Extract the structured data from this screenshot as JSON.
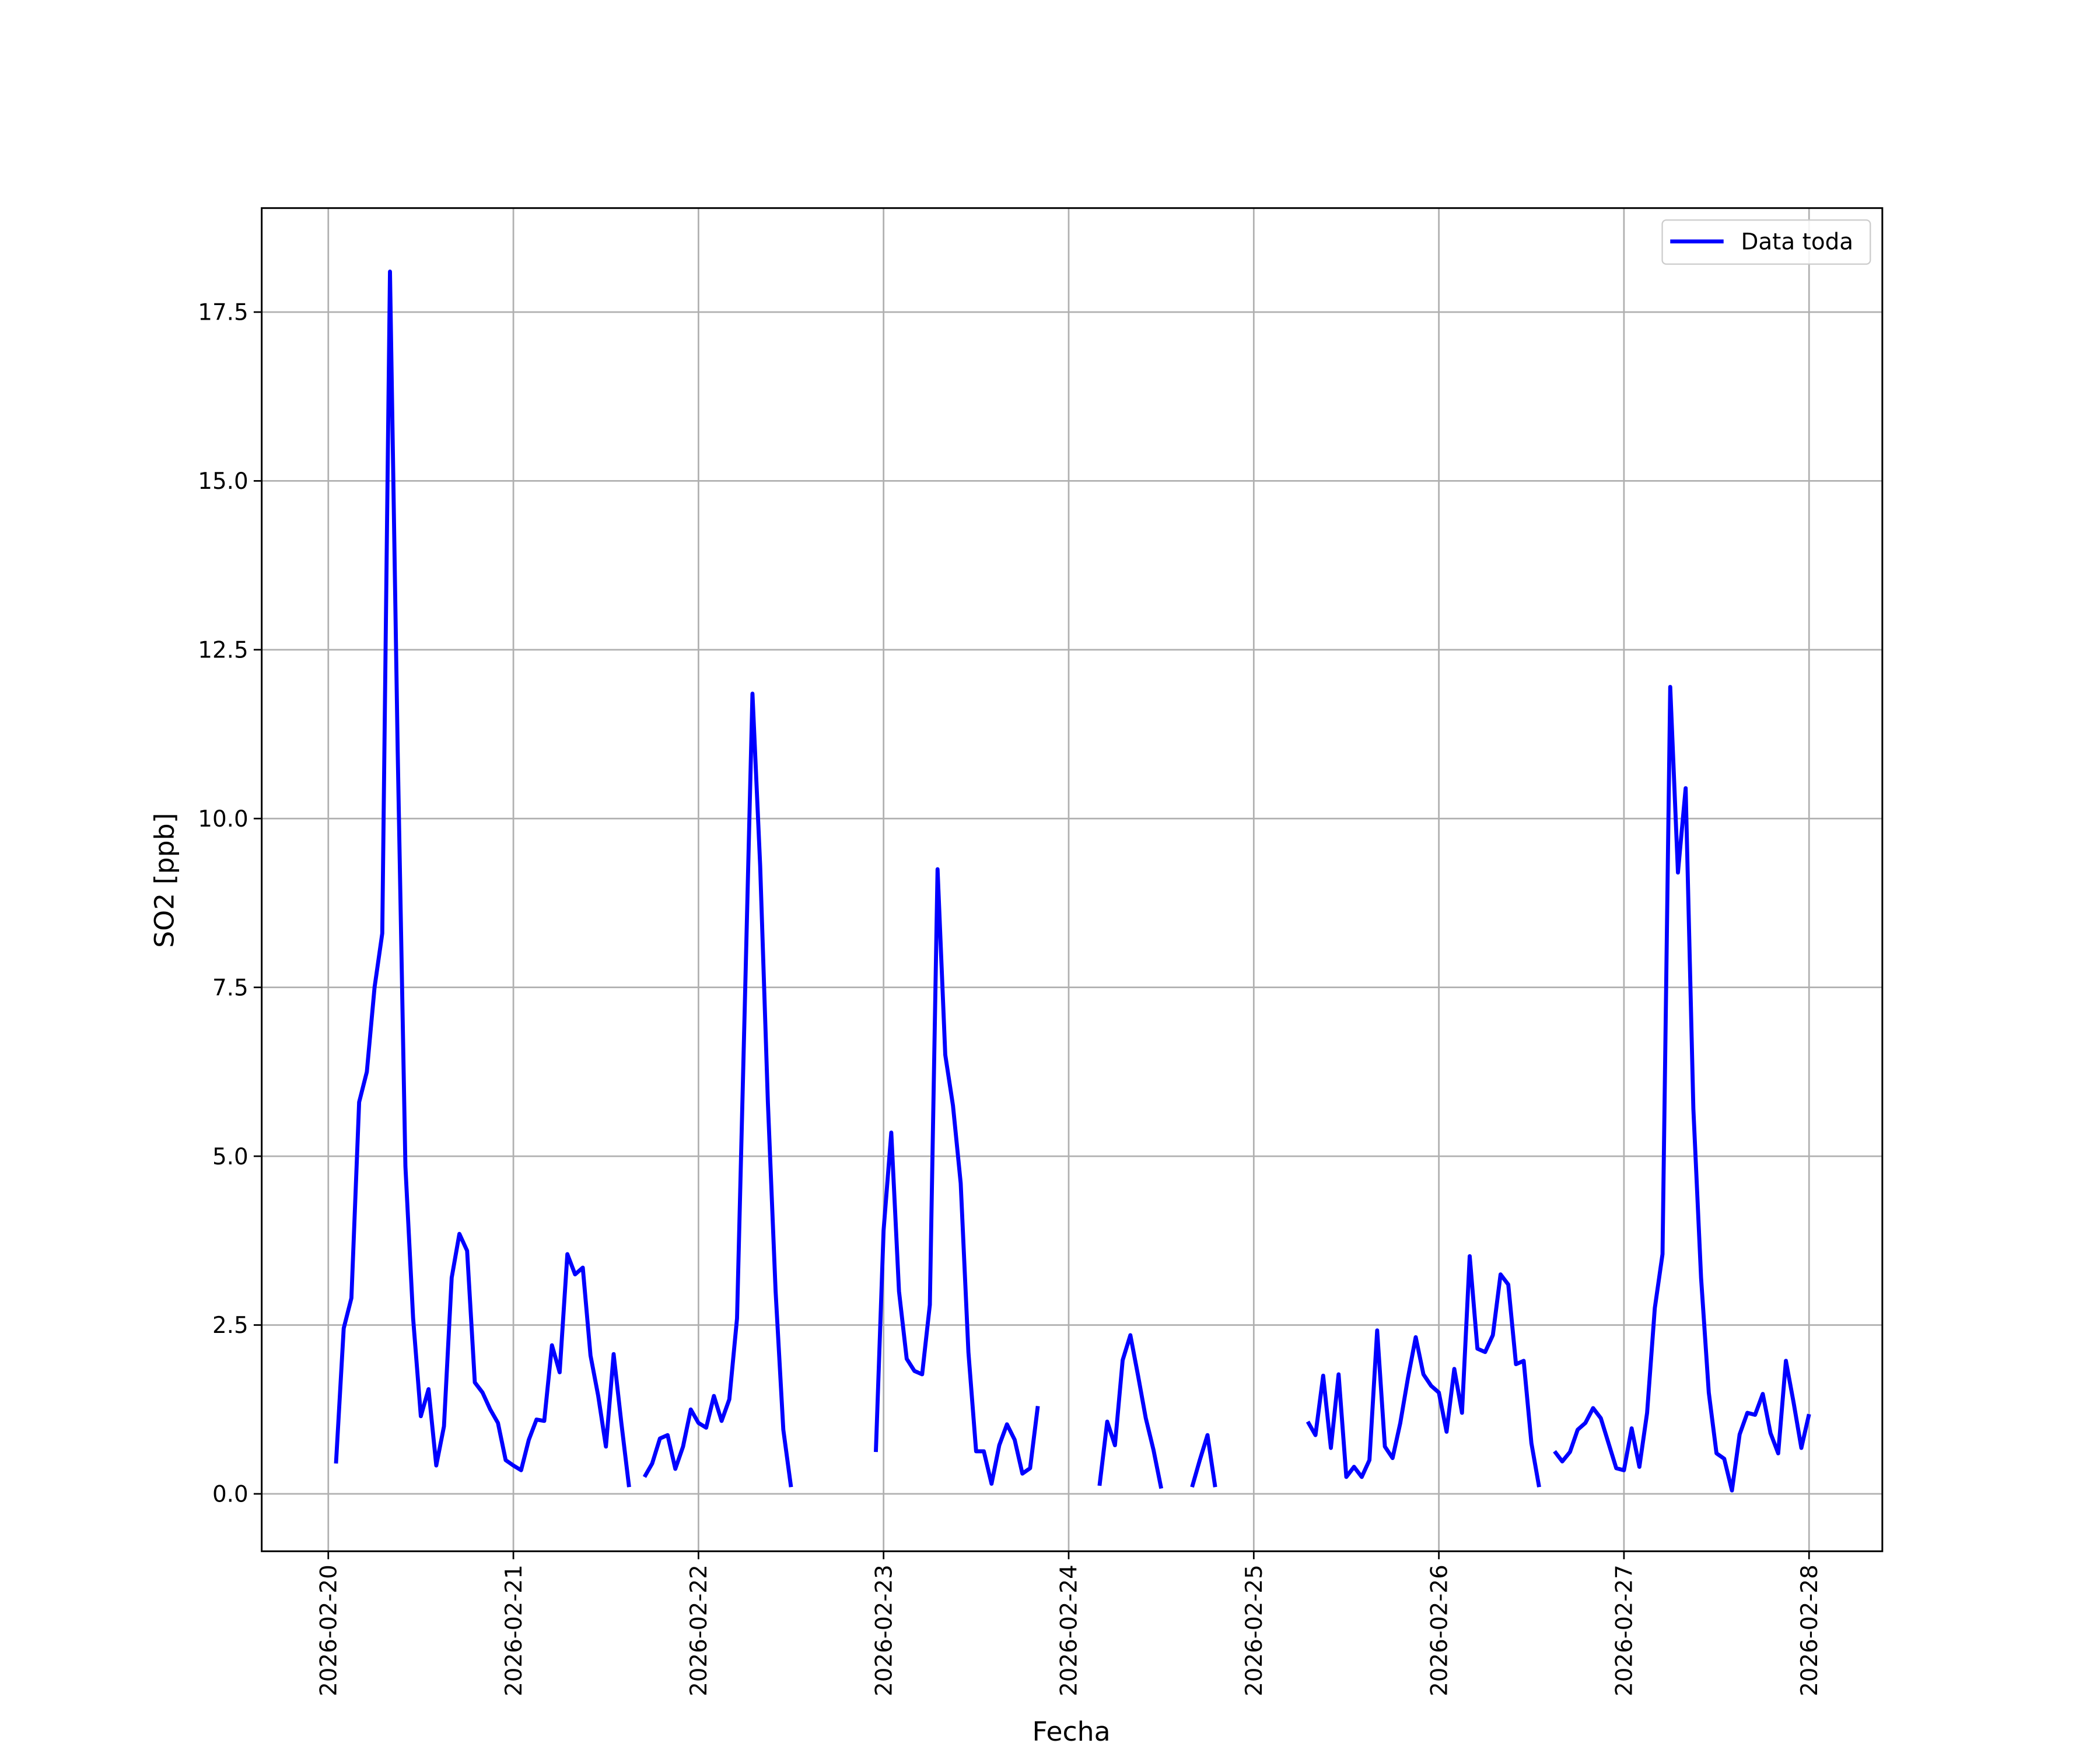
{
  "chart_data": {
    "type": "line",
    "xlabel": "Fecha",
    "ylabel": "SO2 [ppb]",
    "x": [
      "2026-02-20 01:00",
      "2026-02-20 02:00",
      "2026-02-20 03:00",
      "2026-02-20 04:00",
      "2026-02-20 05:00",
      "2026-02-20 06:00",
      "2026-02-20 07:00",
      "2026-02-20 08:00",
      "2026-02-20 09:00",
      "2026-02-20 10:00",
      "2026-02-20 11:00",
      "2026-02-20 12:00",
      "2026-02-20 13:00",
      "2026-02-20 14:00",
      "2026-02-20 15:00",
      "2026-02-20 16:00",
      "2026-02-20 17:00",
      "2026-02-20 18:00",
      "2026-02-20 19:00",
      "2026-02-20 20:00",
      "2026-02-20 21:00",
      "2026-02-20 22:00",
      "2026-02-20 23:00",
      "2026-02-21 00:00",
      "2026-02-21 01:00",
      "2026-02-21 02:00",
      "2026-02-21 03:00",
      "2026-02-21 04:00",
      "2026-02-21 05:00",
      "2026-02-21 06:00",
      "2026-02-21 07:00",
      "2026-02-21 08:00",
      "2026-02-21 09:00",
      "2026-02-21 10:00",
      "2026-02-21 11:00",
      "2026-02-21 12:00",
      "2026-02-21 13:00",
      "2026-02-21 14:00",
      "2026-02-21 15:00",
      "2026-02-21 16:00",
      "2026-02-21 17:00",
      "2026-02-21 18:00",
      "2026-02-21 19:00",
      "2026-02-21 20:00",
      "2026-02-21 21:00",
      "2026-02-21 22:00",
      "2026-02-21 23:00",
      "2026-02-22 00:00",
      "2026-02-22 01:00",
      "2026-02-22 02:00",
      "2026-02-22 03:00",
      "2026-02-22 04:00",
      "2026-02-22 05:00",
      "2026-02-22 06:00",
      "2026-02-22 07:00",
      "2026-02-22 08:00",
      "2026-02-22 09:00",
      "2026-02-22 10:00",
      "2026-02-22 11:00",
      "2026-02-22 12:00",
      "2026-02-22 13:00",
      "2026-02-22 14:00",
      "2026-02-22 15:00",
      "2026-02-22 16:00",
      "2026-02-22 17:00",
      "2026-02-22 18:00",
      "2026-02-22 19:00",
      "2026-02-22 20:00",
      "2026-02-22 21:00",
      "2026-02-22 22:00",
      "2026-02-22 23:00",
      "2026-02-23 00:00",
      "2026-02-23 01:00",
      "2026-02-23 02:00",
      "2026-02-23 03:00",
      "2026-02-23 04:00",
      "2026-02-23 05:00",
      "2026-02-23 06:00",
      "2026-02-23 07:00",
      "2026-02-23 08:00",
      "2026-02-23 09:00",
      "2026-02-23 10:00",
      "2026-02-23 11:00",
      "2026-02-23 12:00",
      "2026-02-23 13:00",
      "2026-02-23 14:00",
      "2026-02-23 15:00",
      "2026-02-23 16:00",
      "2026-02-23 17:00",
      "2026-02-23 18:00",
      "2026-02-23 19:00",
      "2026-02-23 20:00",
      "2026-02-23 21:00",
      "2026-02-23 22:00",
      "2026-02-23 23:00",
      "2026-02-24 00:00",
      "2026-02-24 01:00",
      "2026-02-24 02:00",
      "2026-02-24 03:00",
      "2026-02-24 04:00",
      "2026-02-24 05:00",
      "2026-02-24 06:00",
      "2026-02-24 07:00",
      "2026-02-24 08:00",
      "2026-02-24 09:00",
      "2026-02-24 10:00",
      "2026-02-24 11:00",
      "2026-02-24 12:00",
      "2026-02-24 13:00",
      "2026-02-24 14:00",
      "2026-02-24 15:00",
      "2026-02-24 16:00",
      "2026-02-24 17:00",
      "2026-02-24 18:00",
      "2026-02-24 19:00",
      "2026-02-24 20:00",
      "2026-02-24 21:00",
      "2026-02-24 22:00",
      "2026-02-24 23:00",
      "2026-02-25 00:00",
      "2026-02-25 01:00",
      "2026-02-25 02:00",
      "2026-02-25 03:00",
      "2026-02-25 04:00",
      "2026-02-25 05:00",
      "2026-02-25 06:00",
      "2026-02-25 07:00",
      "2026-02-25 08:00",
      "2026-02-25 09:00",
      "2026-02-25 10:00",
      "2026-02-25 11:00",
      "2026-02-25 12:00",
      "2026-02-25 13:00",
      "2026-02-25 14:00",
      "2026-02-25 15:00",
      "2026-02-25 16:00",
      "2026-02-25 17:00",
      "2026-02-25 18:00",
      "2026-02-25 19:00",
      "2026-02-25 20:00",
      "2026-02-25 21:00",
      "2026-02-25 22:00",
      "2026-02-25 23:00",
      "2026-02-26 00:00",
      "2026-02-26 01:00",
      "2026-02-26 02:00",
      "2026-02-26 03:00",
      "2026-02-26 04:00",
      "2026-02-26 05:00",
      "2026-02-26 06:00",
      "2026-02-26 07:00",
      "2026-02-26 08:00",
      "2026-02-26 09:00",
      "2026-02-26 10:00",
      "2026-02-26 11:00",
      "2026-02-26 12:00",
      "2026-02-26 13:00",
      "2026-02-26 14:00",
      "2026-02-26 15:00",
      "2026-02-26 16:00",
      "2026-02-26 17:00",
      "2026-02-26 18:00",
      "2026-02-26 19:00",
      "2026-02-26 20:00",
      "2026-02-26 21:00",
      "2026-02-26 22:00",
      "2026-02-26 23:00",
      "2026-02-27 00:00",
      "2026-02-27 01:00",
      "2026-02-27 02:00",
      "2026-02-27 03:00",
      "2026-02-27 04:00",
      "2026-02-27 05:00",
      "2026-02-27 06:00",
      "2026-02-27 07:00",
      "2026-02-27 08:00",
      "2026-02-27 09:00",
      "2026-02-27 10:00",
      "2026-02-27 11:00",
      "2026-02-27 12:00",
      "2026-02-27 13:00",
      "2026-02-27 14:00",
      "2026-02-27 15:00",
      "2026-02-27 16:00",
      "2026-02-27 17:00",
      "2026-02-27 18:00",
      "2026-02-27 19:00",
      "2026-02-27 20:00",
      "2026-02-27 21:00",
      "2026-02-27 22:00",
      "2026-02-27 23:00",
      "2026-02-28 00:00"
    ],
    "series": [
      {
        "name": "Data toda",
        "color": "#0000ff",
        "values": [
          0.45,
          2.45,
          2.9,
          5.8,
          6.25,
          7.5,
          8.3,
          18.1,
          11.0,
          4.85,
          2.6,
          1.15,
          1.55,
          0.42,
          1.0,
          3.2,
          3.85,
          3.6,
          1.65,
          1.5,
          1.25,
          1.05,
          0.5,
          0.42,
          0.35,
          0.8,
          1.1,
          1.08,
          2.2,
          1.8,
          3.55,
          3.25,
          3.35,
          2.05,
          1.45,
          0.7,
          2.07,
          1.05,
          0.1,
          null,
          0.25,
          0.45,
          0.82,
          0.87,
          0.37,
          0.7,
          1.25,
          1.05,
          0.98,
          1.45,
          1.08,
          1.4,
          2.6,
          7.2,
          11.85,
          9.3,
          5.8,
          3.0,
          0.95,
          0.1,
          null,
          null,
          null,
          null,
          null,
          null,
          null,
          null,
          null,
          null,
          0.62,
          3.9,
          5.35,
          3.0,
          2.0,
          1.82,
          1.77,
          2.8,
          9.25,
          6.5,
          5.75,
          4.6,
          2.1,
          0.63,
          0.63,
          0.15,
          0.72,
          1.03,
          0.8,
          0.3,
          0.38,
          1.3,
          null,
          null,
          null,
          null,
          null,
          null,
          null,
          0.12,
          1.07,
          0.72,
          1.98,
          2.35,
          1.75,
          1.12,
          0.65,
          0.08,
          null,
          null,
          null,
          0.1,
          0.5,
          0.87,
          0.1,
          null,
          null,
          null,
          null,
          null,
          null,
          null,
          null,
          null,
          null,
          null,
          1.07,
          0.87,
          1.75,
          0.68,
          1.77,
          0.25,
          0.4,
          0.25,
          0.5,
          2.42,
          0.7,
          0.53,
          1.05,
          1.72,
          2.32,
          1.77,
          1.6,
          1.5,
          0.92,
          1.85,
          1.2,
          3.52,
          2.15,
          2.1,
          2.35,
          3.25,
          3.1,
          1.92,
          1.97,
          0.75,
          0.1,
          null,
          0.63,
          0.48,
          0.62,
          0.95,
          1.05,
          1.27,
          1.12,
          0.75,
          0.38,
          0.35,
          0.97,
          0.4,
          1.2,
          2.75,
          3.55,
          11.95,
          9.2,
          10.45,
          5.7,
          3.2,
          1.5,
          0.6,
          0.52,
          0.05,
          0.88,
          1.2,
          1.17,
          1.48,
          0.9,
          0.6,
          1.97,
          1.35,
          0.68,
          1.18
        ]
      }
    ],
    "xlim": [
      "2026-02-19 15:22",
      "2026-02-28 09:30"
    ],
    "xticks": [
      "2026-02-20",
      "2026-02-21",
      "2026-02-22",
      "2026-02-23",
      "2026-02-24",
      "2026-02-25",
      "2026-02-26",
      "2026-02-27",
      "2026-02-28"
    ],
    "ylim": [
      -0.85,
      19.04
    ],
    "yticks": [
      {
        "value": 0,
        "label": "0.0"
      },
      2.5,
      {
        "value": 5,
        "label": "5.0"
      },
      7.5,
      {
        "value": 10,
        "label": "10.0"
      },
      12.5,
      {
        "value": 15,
        "label": "15.0"
      },
      17.5
    ],
    "grid": true,
    "legend": "upper right"
  }
}
